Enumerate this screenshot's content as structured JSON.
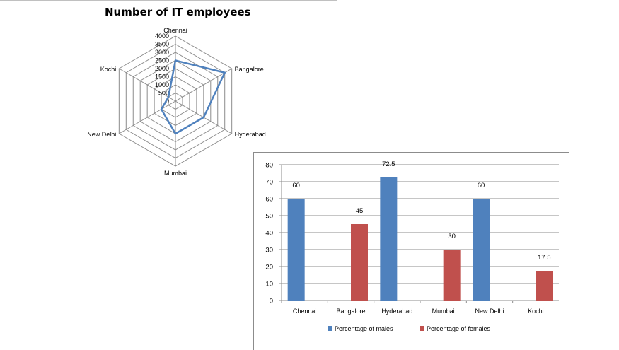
{
  "chart_data": [
    {
      "type": "radar",
      "title": "Number of IT employees",
      "categories": [
        "Chennai",
        "Bangalore",
        "Hyderabad",
        "Mumbai",
        "New Delhi",
        "Kochi"
      ],
      "values": [
        2500,
        3500,
        2000,
        2000,
        1000,
        500
      ],
      "r_ticks": [
        "0",
        "500",
        "1000",
        "1500",
        "2000",
        "2500",
        "3000",
        "3500",
        "4000"
      ],
      "rlim": [
        0,
        4000
      ],
      "series_color": "#4f81bd",
      "grid": true
    },
    {
      "type": "bar",
      "categories": [
        "Chennai",
        "Bangalore",
        "Hyderabad",
        "Mumbai",
        "New Delhi",
        "Kochi"
      ],
      "series": [
        {
          "name": "Percentage of males",
          "color": "#4f81bd",
          "values": [
            60,
            null,
            72.5,
            null,
            60,
            null
          ]
        },
        {
          "name": "Percentage of females",
          "color": "#c0504d",
          "values": [
            null,
            45,
            null,
            30,
            null,
            17.5
          ]
        }
      ],
      "data_labels": [
        "60",
        "45",
        "72.5",
        "30",
        "60",
        "17.5"
      ],
      "y_ticks": [
        "0",
        "10",
        "20",
        "30",
        "40",
        "50",
        "60",
        "70",
        "80"
      ],
      "ylim": [
        0,
        80
      ],
      "grid": true,
      "legend_position": "bottom"
    }
  ]
}
